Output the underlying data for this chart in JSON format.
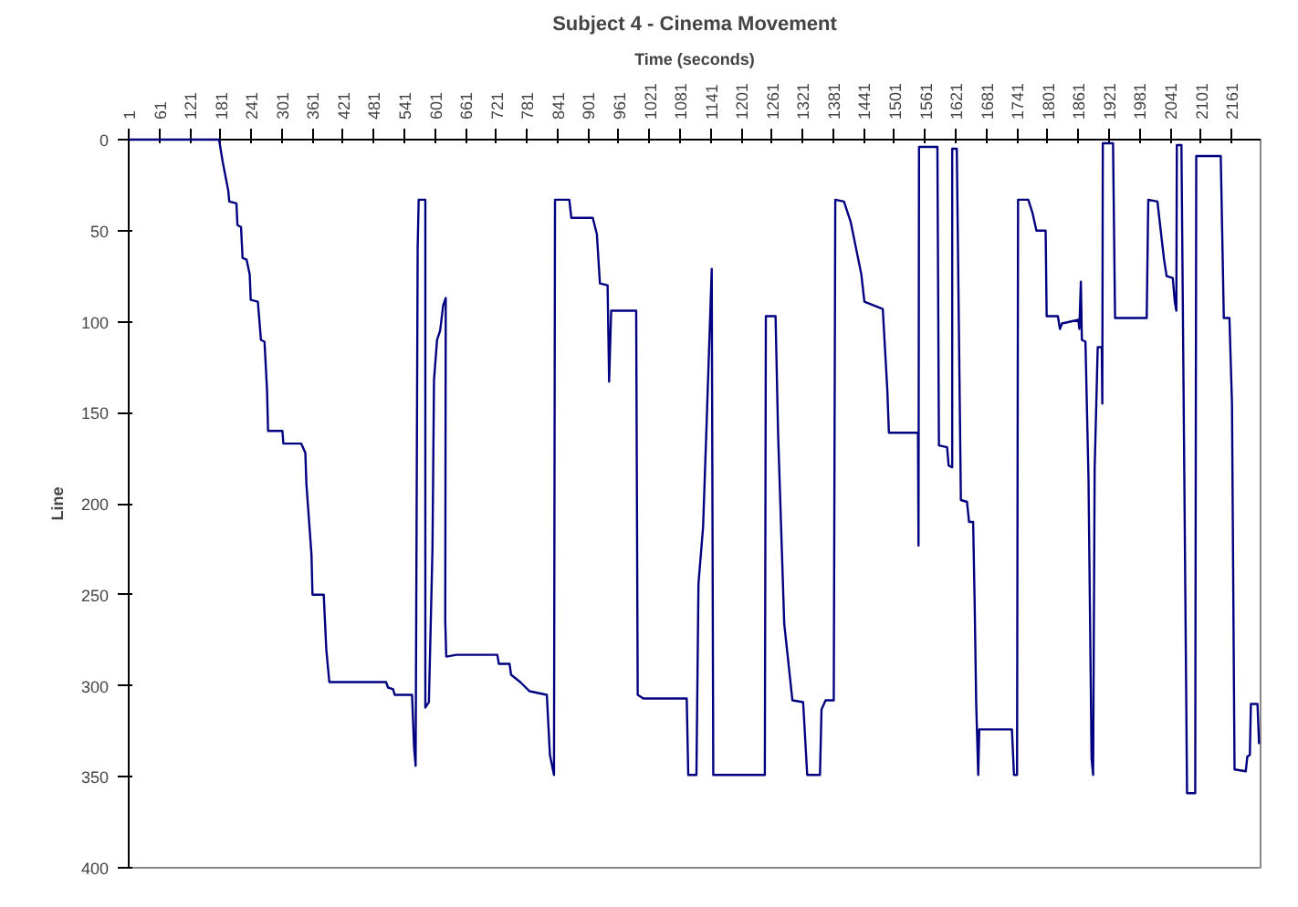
{
  "chart_data": {
    "type": "line",
    "title": "Subject 4 - Cinema Movement",
    "xlabel": "Time (seconds)",
    "ylabel": "Line",
    "xlim": [
      1,
      2218
    ],
    "xticks": [
      1,
      61,
      121,
      181,
      241,
      301,
      361,
      421,
      481,
      541,
      601,
      661,
      721,
      781,
      841,
      901,
      961,
      1021,
      1081,
      1141,
      1201,
      1261,
      1321,
      1381,
      1441,
      1501,
      1561,
      1621,
      1681,
      1741,
      1801,
      1861,
      1921,
      1981,
      2041,
      2101,
      2161
    ],
    "ylim": [
      400,
      0
    ],
    "yticks": [
      0,
      50,
      100,
      150,
      200,
      250,
      300,
      350,
      400
    ],
    "grid": false,
    "marker": "none",
    "line_style": "solid",
    "series": [
      {
        "color": "#000080",
        "x": [
          1,
          178,
          185,
          196,
          198,
          212,
          214,
          221,
          224,
          232,
          238,
          240,
          254,
          260,
          267,
          272,
          274,
          302,
          304,
          339,
          347,
          349,
          359,
          361,
          383,
          388,
          394,
          505,
          509,
          519,
          522,
          556,
          560,
          563,
          567,
          569,
          582,
          582,
          589,
          596,
          599,
          605,
          611,
          617,
          622,
          621,
          623,
          643,
          723,
          726,
          747,
          750,
          768,
          786,
          820,
          826,
          834,
          836,
          864,
          868,
          910,
          918,
          924,
          939,
          942,
          946,
          995,
          998,
          1009,
          1094,
          1097,
          1113,
          1117,
          1126,
          1132,
          1143,
          1146,
          1247,
          1249,
          1268,
          1273,
          1285,
          1301,
          1322,
          1330,
          1355,
          1358,
          1366,
          1382,
          1385,
          1402,
          1415,
          1436,
          1442,
          1478,
          1487,
          1490,
          1547,
          1548,
          1549,
          1585,
          1588,
          1604,
          1607,
          1614,
          1614,
          1623,
          1631,
          1643,
          1647,
          1655,
          1658,
          1661,
          1665,
          1667,
          1731,
          1735,
          1741,
          1743,
          1763,
          1771,
          1779,
          1797,
          1799,
          1821,
          1825,
          1829,
          1861,
          1863,
          1866,
          1868,
          1875,
          1881,
          1887,
          1890,
          1893,
          1899,
          1907,
          1908,
          1909,
          1929,
          1933,
          1995,
          1998,
          2016,
          2022,
          2029,
          2034,
          2046,
          2050,
          2053,
          2054,
          2063,
          2074,
          2090,
          2092,
          2140,
          2146,
          2157,
          2162,
          2167,
          2189,
          2192,
          2197,
          2199,
          2212,
          2215
        ],
        "values": [
          0,
          0,
          12,
          28,
          34,
          35,
          47,
          48,
          65,
          66,
          74,
          88,
          89,
          110,
          111,
          138,
          160,
          160,
          167,
          167,
          172,
          189,
          228,
          250,
          250,
          280,
          298,
          298,
          301,
          302,
          305,
          305,
          334,
          344,
          59,
          33,
          33,
          312,
          309,
          225,
          132,
          110,
          105,
          91,
          87,
          264,
          284,
          283,
          283,
          288,
          288,
          294,
          298,
          303,
          305,
          338,
          349,
          33,
          33,
          43,
          43,
          52,
          79,
          80,
          133,
          94,
          94,
          305,
          307,
          307,
          349,
          349,
          244,
          213,
          164,
          71,
          349,
          349,
          97,
          97,
          162,
          266,
          308,
          309,
          349,
          349,
          313,
          308,
          308,
          33,
          34,
          45,
          74,
          89,
          93,
          138,
          161,
          161,
          223,
          4,
          4,
          168,
          169,
          179,
          180,
          5,
          5,
          198,
          199,
          210,
          210,
          255,
          310,
          349,
          324,
          324,
          349,
          349,
          33,
          33,
          40,
          50,
          50,
          97,
          97,
          104,
          101,
          99,
          104,
          78,
          110,
          111,
          187,
          340,
          349,
          181,
          114,
          114,
          145,
          2,
          2,
          98,
          98,
          33,
          34,
          49,
          66,
          75,
          76,
          89,
          94,
          3,
          3,
          359,
          359,
          9,
          9,
          98,
          98,
          145,
          346,
          347,
          339,
          338,
          310,
          310,
          332
        ]
      }
    ]
  }
}
